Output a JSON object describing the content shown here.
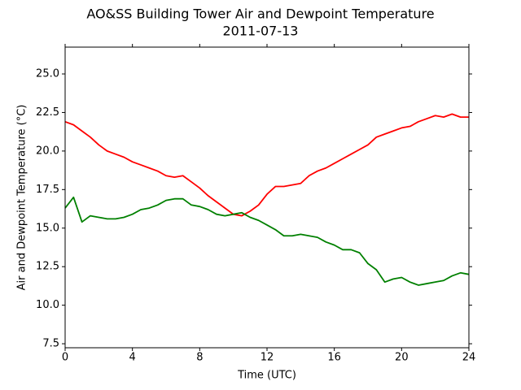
{
  "chart_data": {
    "type": "line",
    "title": "AO&SS Building Tower Air and Dewpoint Temperature",
    "subtitle": "2011-07-13",
    "x_label": "Time (UTC)",
    "y_label": "Air and Dewpoint Temperature (°C)",
    "x": [
      0,
      0.5,
      1,
      1.5,
      2,
      2.5,
      3,
      3.5,
      4,
      4.5,
      5,
      5.5,
      6,
      6.5,
      7,
      7.5,
      8,
      8.5,
      9,
      9.5,
      10,
      10.5,
      11,
      11.5,
      12,
      12.5,
      13,
      13.5,
      14,
      14.5,
      15,
      15.5,
      16,
      16.5,
      17,
      17.5,
      18,
      18.5,
      19,
      19.5,
      20,
      20.5,
      21,
      21.5,
      22,
      22.5,
      23,
      23.5,
      24
    ],
    "series": [
      {
        "color": "#ff0000",
        "values": [
          21.9,
          21.7,
          21.3,
          20.9,
          20.4,
          20.0,
          19.8,
          19.6,
          19.3,
          19.1,
          18.9,
          18.7,
          18.4,
          18.3,
          18.4,
          18.0,
          17.6,
          17.1,
          16.7,
          16.3,
          15.9,
          15.8,
          16.1,
          16.5,
          17.2,
          17.7,
          17.7,
          17.8,
          17.9,
          18.4,
          18.7,
          18.9,
          19.2,
          19.5,
          19.8,
          20.1,
          20.4,
          20.9,
          21.1,
          21.3,
          21.5,
          21.6,
          21.9,
          22.1,
          22.3,
          22.2,
          22.4,
          22.2,
          22.2
        ]
      },
      {
        "color": "#008000",
        "values": [
          16.3,
          17.0,
          15.4,
          15.8,
          15.7,
          15.6,
          15.6,
          15.7,
          15.9,
          16.2,
          16.3,
          16.5,
          16.8,
          16.9,
          16.9,
          16.5,
          16.4,
          16.2,
          15.9,
          15.8,
          15.9,
          16.0,
          15.7,
          15.5,
          15.2,
          14.9,
          14.5,
          14.5,
          14.6,
          14.5,
          14.4,
          14.1,
          13.9,
          13.6,
          13.6,
          13.4,
          12.7,
          12.3,
          11.5,
          11.7,
          11.8,
          11.5,
          11.3,
          11.4,
          11.5,
          11.6,
          11.9,
          12.1,
          12.0
        ]
      }
    ],
    "xlim": [
      0,
      24
    ],
    "xticks": [
      0,
      4,
      8,
      12,
      16,
      20,
      24
    ],
    "ylim": [
      7.24,
      26.74
    ],
    "yticks": [
      7.5,
      {
        "value": 10,
        "label": "10.0"
      },
      12.5,
      {
        "value": 15,
        "label": "15.0"
      },
      17.5,
      {
        "value": 20,
        "label": "20.0"
      },
      22.5,
      {
        "value": 25,
        "label": "25.0"
      }
    ]
  }
}
